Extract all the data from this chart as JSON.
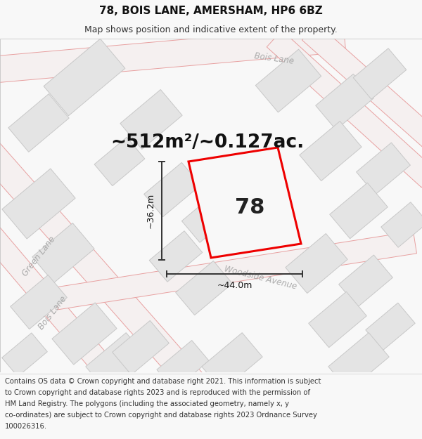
{
  "title_line1": "78, BOIS LANE, AMERSHAM, HP6 6BZ",
  "title_line2": "Map shows position and indicative extent of the property.",
  "area_text": "~512m²/~0.127ac.",
  "plot_number": "78",
  "dim_horizontal": "~44.0m",
  "dim_vertical": "~36.2m",
  "footer_lines": [
    "Contains OS data © Crown copyright and database right 2021. This information is subject",
    "to Crown copyright and database rights 2023 and is reproduced with the permission of",
    "HM Land Registry. The polygons (including the associated geometry, namely x, y",
    "co-ordinates) are subject to Crown copyright and database rights 2023 Ordnance Survey",
    "100026316."
  ],
  "bg_color": "#f8f8f8",
  "map_bg": "#f0efee",
  "plot_outline_color": "#ee0000",
  "road_outline_color": "#e8a0a0",
  "road_fill_color": "#f5f0f0",
  "building_fill": "#e4e4e4",
  "building_outline": "#c8c8c8",
  "dim_line_color": "#333333",
  "street_label_color": "#aaaaaa",
  "title_fontsize": 11,
  "subtitle_fontsize": 9,
  "area_fontsize": 19,
  "plot_num_fontsize": 22,
  "footer_fontsize": 7.2,
  "dim_fontsize": 9
}
